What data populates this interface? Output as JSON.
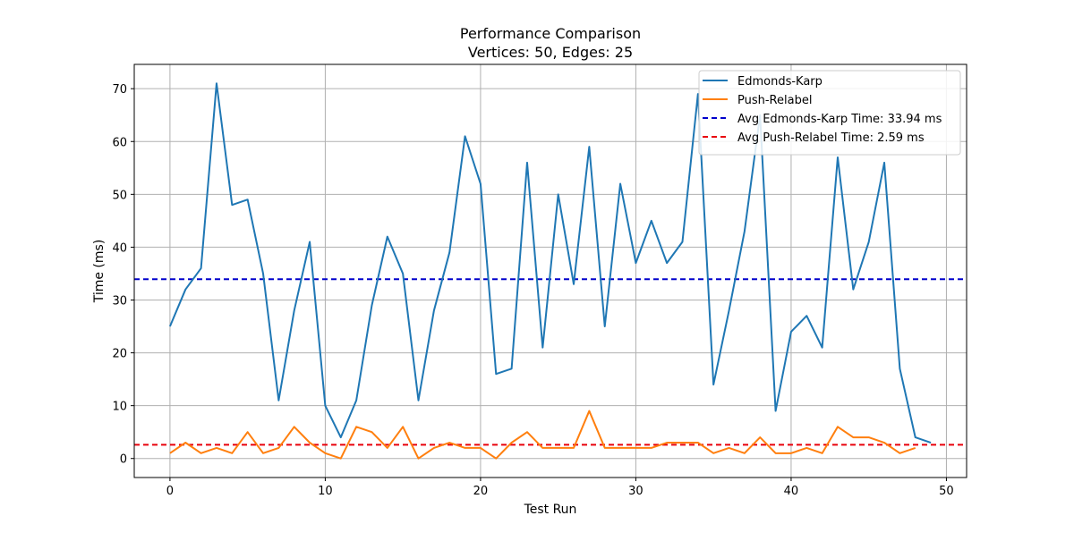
{
  "chart_data": {
    "type": "line",
    "title": "Performance Comparison",
    "subtitle": "Vertices: 50, Edges: 25",
    "xlabel": "Test Run",
    "ylabel": "Time (ms)",
    "xlim": [
      -2.3,
      51.3
    ],
    "ylim": [
      -3.6,
      74.6
    ],
    "xticks": [
      0,
      10,
      20,
      30,
      40,
      50
    ],
    "yticks": [
      0,
      10,
      20,
      30,
      40,
      50,
      60,
      70
    ],
    "grid": true,
    "legend_position": "top-right",
    "series": [
      {
        "name": "Edmonds-Karp",
        "color": "#1f77b4",
        "style": "solid",
        "x": [
          0,
          1,
          2,
          3,
          4,
          5,
          6,
          7,
          8,
          9,
          10,
          11,
          12,
          13,
          14,
          15,
          16,
          17,
          18,
          19,
          20,
          21,
          22,
          23,
          24,
          25,
          26,
          27,
          28,
          29,
          30,
          31,
          32,
          33,
          34,
          35,
          36,
          37,
          38,
          39,
          40,
          41,
          42,
          43,
          44,
          45,
          46,
          47,
          48,
          49
        ],
        "y": [
          25,
          32,
          36,
          71,
          48,
          49,
          35,
          11,
          28,
          41,
          10,
          4,
          11,
          29,
          42,
          35,
          11,
          28,
          39,
          61,
          52,
          16,
          17,
          56,
          21,
          50,
          33,
          59,
          25,
          52,
          37,
          45,
          37,
          41,
          69,
          14,
          28,
          43,
          65,
          9,
          24,
          27,
          21,
          57,
          32,
          41,
          56,
          17,
          4,
          3
        ]
      },
      {
        "name": "Push-Relabel",
        "color": "#ff7f0e",
        "style": "solid",
        "x": [
          0,
          1,
          2,
          3,
          4,
          5,
          6,
          7,
          8,
          9,
          10,
          11,
          12,
          13,
          14,
          15,
          16,
          17,
          18,
          19,
          20,
          21,
          22,
          23,
          24,
          25,
          26,
          27,
          28,
          29,
          30,
          31,
          32,
          33,
          34,
          35,
          36,
          37,
          38,
          39,
          40,
          41,
          42,
          43,
          44,
          45,
          46,
          47,
          48
        ],
        "y": [
          1,
          3,
          1,
          2,
          1,
          5,
          1,
          2,
          6,
          3,
          1,
          0,
          6,
          5,
          2,
          6,
          0,
          2,
          3,
          2,
          2,
          0,
          3,
          5,
          2,
          2,
          2,
          9,
          2,
          2,
          2,
          2,
          3,
          3,
          3,
          1,
          2,
          1,
          4,
          1,
          1,
          2,
          1,
          6,
          4,
          4,
          3,
          1,
          2
        ]
      }
    ],
    "hlines": [
      {
        "name": "Avg Edmonds-Karp Time: 33.94 ms",
        "y": 33.94,
        "color": "#0000cc",
        "style": "dashed"
      },
      {
        "name": "Avg Push-Relabel Time: 2.59 ms",
        "y": 2.59,
        "color": "#e8000b",
        "style": "dashed"
      }
    ]
  }
}
